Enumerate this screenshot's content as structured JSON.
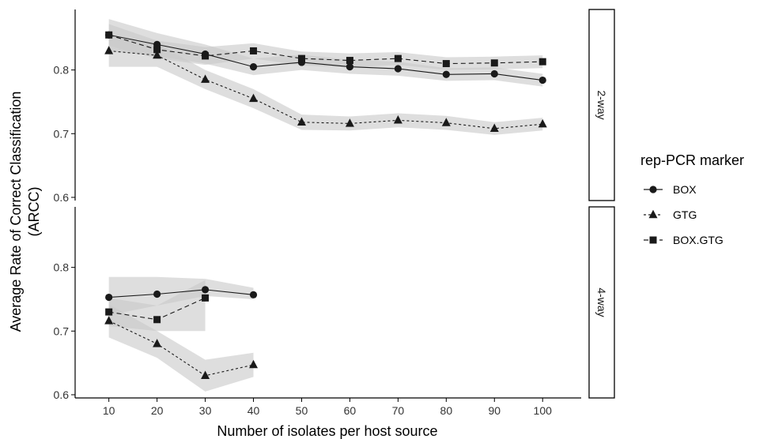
{
  "chart_data": {
    "type": "line",
    "xlabel": "Number of isolates per host source",
    "ylabel_line1": "Average Rate of Correct Classification",
    "ylabel_line2": "(ARCC)",
    "x_ticks": [
      10,
      20,
      30,
      40,
      50,
      60,
      70,
      80,
      90,
      100
    ],
    "xlim": [
      3,
      108
    ],
    "y_ticks": [
      0.6,
      0.7,
      0.8
    ],
    "legend": {
      "title": "rep-PCR marker",
      "position": "right"
    },
    "colors": {
      "line": "#1a1a1a",
      "band": "#c8c8c8",
      "frame": "#000000"
    },
    "panels": [
      {
        "label": "2-way",
        "ylim": [
          0.595,
          0.895
        ],
        "series": [
          {
            "name": "BOX",
            "marker": "circle",
            "dash": "solid",
            "x": [
              10,
              20,
              30,
              40,
              50,
              60,
              70,
              80,
              90,
              100
            ],
            "y": [
              0.855,
              0.84,
              0.825,
              0.805,
              0.812,
              0.805,
              0.802,
              0.793,
              0.794,
              0.784
            ],
            "lower": [
              0.83,
              0.822,
              0.81,
              0.792,
              0.8,
              0.794,
              0.791,
              0.783,
              0.784,
              0.774
            ],
            "upper": [
              0.88,
              0.858,
              0.84,
              0.818,
              0.824,
              0.816,
              0.813,
              0.803,
              0.804,
              0.794
            ]
          },
          {
            "name": "GTG",
            "marker": "triangle",
            "dash": "dotted",
            "x": [
              10,
              20,
              30,
              40,
              50,
              60,
              70,
              80,
              90,
              100
            ],
            "y": [
              0.83,
              0.823,
              0.785,
              0.755,
              0.718,
              0.716,
              0.721,
              0.717,
              0.708,
              0.715
            ],
            "lower": [
              0.805,
              0.805,
              0.77,
              0.74,
              0.706,
              0.705,
              0.71,
              0.706,
              0.698,
              0.705
            ],
            "upper": [
              0.855,
              0.841,
              0.8,
              0.77,
              0.73,
              0.727,
              0.732,
              0.728,
              0.718,
              0.725
            ]
          },
          {
            "name": "BOX.GTG",
            "marker": "square",
            "dash": "dashed",
            "x": [
              10,
              20,
              30,
              40,
              50,
              60,
              70,
              80,
              90,
              100
            ],
            "y": [
              0.855,
              0.832,
              0.822,
              0.83,
              0.818,
              0.815,
              0.818,
              0.81,
              0.811,
              0.813
            ],
            "lower": [
              0.838,
              0.818,
              0.808,
              0.818,
              0.807,
              0.804,
              0.808,
              0.8,
              0.801,
              0.803
            ],
            "upper": [
              0.872,
              0.846,
              0.836,
              0.842,
              0.829,
              0.826,
              0.828,
              0.82,
              0.821,
              0.823
            ]
          }
        ]
      },
      {
        "label": "4-way",
        "ylim": [
          0.595,
          0.895
        ],
        "series": [
          {
            "name": "BOX",
            "marker": "circle",
            "dash": "solid",
            "x": [
              10,
              20,
              30,
              40
            ],
            "y": [
              0.753,
              0.758,
              0.765,
              0.757
            ],
            "lower": [
              0.725,
              0.74,
              0.755,
              0.75
            ],
            "upper": [
              0.785,
              0.785,
              0.782,
              0.768
            ]
          },
          {
            "name": "GTG",
            "marker": "triangle",
            "dash": "dotted",
            "x": [
              10,
              20,
              30,
              40
            ],
            "y": [
              0.716,
              0.68,
              0.63,
              0.647
            ],
            "lower": [
              0.69,
              0.658,
              0.605,
              0.628
            ],
            "upper": [
              0.742,
              0.7,
              0.655,
              0.666
            ]
          },
          {
            "name": "BOX.GTG",
            "marker": "square",
            "dash": "dashed",
            "x": [
              10,
              20,
              30
            ],
            "y": [
              0.73,
              0.718,
              0.752
            ],
            "lower": [
              0.708,
              0.7,
              0.7
            ],
            "upper": [
              0.752,
              0.74,
              0.78
            ]
          }
        ]
      }
    ]
  }
}
